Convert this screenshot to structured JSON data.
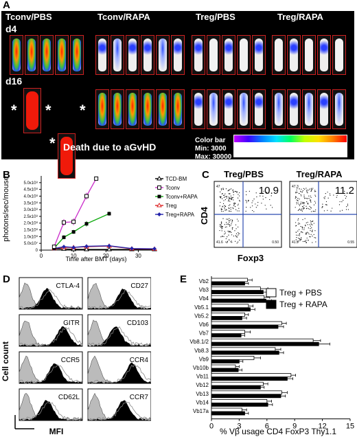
{
  "panelA": {
    "label": "A",
    "group_headers": [
      "Tconv/PBS",
      "Tconv/RAPA",
      "Treg/PBS",
      "Treg/RAPA"
    ],
    "day_labels": [
      "d4",
      "d16"
    ],
    "death_note": "Death due to aGvHD",
    "star": "*",
    "colorbar": {
      "title": "Color bar",
      "min": "Min: 3000",
      "max": "Max: 30000"
    }
  },
  "panelB": {
    "label": "B",
    "ylabel": "photons/sec/mouse",
    "xlabel": "Time after BMT (days)"
  },
  "panelC": {
    "label": "C",
    "titles": [
      "Treg/PBS",
      "Treg/RAPA"
    ],
    "values": [
      "10.9",
      "11.2"
    ],
    "quadrants": [
      [
        "47",
        "0.50",
        "41.6"
      ],
      [
        "47.3",
        "0.55",
        "41.9"
      ]
    ],
    "ylabel": "CD4",
    "xlabel": "Foxp3"
  },
  "panelD": {
    "label": "D",
    "markers": [
      "CTLA-4",
      "CD27",
      "GITR",
      "CD103",
      "CCR5",
      "CCR4",
      "CD62L",
      "CCR7"
    ],
    "ylabel": "Cell count",
    "xlabel": "MFI"
  },
  "panelE": {
    "label": "E",
    "xlabel": "% Vβ usage CD4 FoxP3 Thy1.1"
  },
  "chart_data": [
    {
      "type": "line",
      "x_ticks": [
        0,
        10,
        20,
        30
      ],
      "y_ticks": [
        "0",
        "5.0x10⁷",
        "1.0x10⁸",
        "1.5x10⁸",
        "2.0x10⁸",
        "2.5x10⁸",
        "3.0x10⁸",
        "3.5x10⁸",
        "4.0x10⁸",
        "4.5x10⁸",
        "5.0x10⁸"
      ],
      "xlim": [
        0,
        35
      ],
      "ylim": [
        0,
        550000000
      ],
      "xlabel": "Time after BMT (days)",
      "ylabel": "photons/sec/mouse",
      "legend_position": "top-right",
      "series": [
        {
          "name": "TCD-BM",
          "color": "#000000",
          "marker": "open-triangle",
          "x": [
            4,
            7,
            10,
            14,
            21,
            28,
            35
          ],
          "y": [
            10000000,
            8000000,
            6000000,
            5000000,
            5000000,
            5000000,
            5000000
          ]
        },
        {
          "name": "Tconv",
          "color": "#cc33cc",
          "marker": "open-square",
          "x": [
            4,
            7,
            10,
            14,
            17
          ],
          "y": [
            25000000,
            205000000,
            210000000,
            400000000,
            530000000
          ],
          "err": [
            10000000,
            25000000,
            25000000,
            25000000,
            10000000
          ]
        },
        {
          "name": "Tconv+RAPA",
          "color": "#11aa11",
          "marker": "filled-square",
          "x": [
            4,
            7,
            10,
            14,
            21
          ],
          "y": [
            15000000,
            95000000,
            135000000,
            195000000,
            270000000
          ],
          "err": [
            8000000,
            15000000,
            15000000,
            20000000,
            15000000
          ]
        },
        {
          "name": "Treg",
          "color": "#dd2222",
          "marker": "open-triangle",
          "x": [
            4,
            7,
            10,
            14,
            21,
            28,
            35
          ],
          "y": [
            12000000,
            20000000,
            20000000,
            25000000,
            30000000,
            10000000,
            8000000
          ]
        },
        {
          "name": "Treg+RAPA",
          "color": "#2222aa",
          "marker": "filled-diamond",
          "x": [
            4,
            7,
            10,
            14,
            21,
            28,
            35
          ],
          "y": [
            12000000,
            25000000,
            20000000,
            28000000,
            32000000,
            12000000,
            10000000
          ]
        }
      ]
    },
    {
      "type": "bar",
      "orientation": "horizontal",
      "categories": [
        "Vb2",
        "Vb3",
        "Vb4",
        "Vb5.1",
        "Vb5.2",
        "Vb6",
        "Vb7",
        "Vb8.1/2",
        "Vb8.3",
        "Vb9",
        "Vb10b",
        "Vb11",
        "Vb12",
        "Vb13",
        "Vb14",
        "Vb17a"
      ],
      "x_ticks": [
        0,
        3,
        6,
        9,
        12,
        15
      ],
      "xlim": [
        0,
        15
      ],
      "xlabel": "% Vβ usage CD4 FoxP3 Thy1.1",
      "legend_position": "top-right",
      "series": [
        {
          "name": "Treg + PBS",
          "color": "#ffffff",
          "values": [
            3.9,
            5.3,
            5.7,
            4.0,
            3.6,
            7.6,
            3.6,
            11.0,
            6.9,
            4.6,
            2.6,
            8.6,
            5.6,
            7.6,
            6.0,
            3.3
          ],
          "err": [
            0.5,
            0.8,
            0.6,
            0.5,
            0.4,
            0.5,
            0.6,
            0.8,
            0.6,
            0.7,
            0.4,
            0.5,
            0.5,
            0.6,
            0.5,
            0.5
          ]
        },
        {
          "name": "Treg + RAPA",
          "color": "#000000",
          "values": [
            3.6,
            5.6,
            5.9,
            4.2,
            3.3,
            7.2,
            3.2,
            11.6,
            7.3,
            3.0,
            2.9,
            8.2,
            5.3,
            7.5,
            6.1,
            3.6
          ],
          "err": [
            0.4,
            0.7,
            0.6,
            0.5,
            0.5,
            0.6,
            0.4,
            1.2,
            0.5,
            0.4,
            0.4,
            0.6,
            0.4,
            0.5,
            0.5,
            0.4
          ]
        }
      ]
    }
  ]
}
